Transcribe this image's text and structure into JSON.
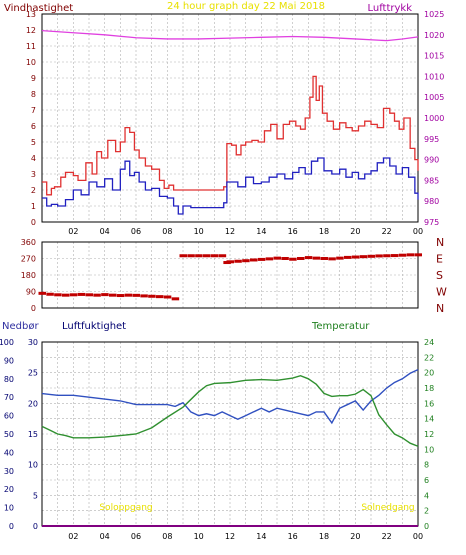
{
  "wind_panel": {
    "left_title": "Vindhastighet",
    "center_title": "24 hour graph day  22 Mai 2018",
    "right_title": "Lufttrykk",
    "x_ticks": [
      "02",
      "04",
      "06",
      "08",
      "10",
      "12",
      "14",
      "16",
      "18",
      "20",
      "22",
      "00"
    ],
    "left_ticks": [
      "0",
      "1",
      "2",
      "3",
      "4",
      "5",
      "6",
      "7",
      "8",
      "9",
      "10",
      "11",
      "12",
      "13"
    ],
    "right_ticks": [
      "975",
      "980",
      "985",
      "990",
      "995",
      "1000",
      "1005",
      "1010",
      "1015",
      "1020",
      "1025"
    ]
  },
  "direction_panel": {
    "left_ticks": [
      "0",
      "90",
      "180",
      "270",
      "360"
    ],
    "compass_labels": [
      "N",
      "W",
      "S",
      "E",
      "N"
    ]
  },
  "climate_panel": {
    "left_title": "Nedbør",
    "mid_title": "Luftfuktighet",
    "right_title": "Temperatur",
    "rain_ticks": [
      "0",
      "10",
      "20",
      "30",
      "40",
      "50",
      "60",
      "70",
      "80",
      "90",
      "100"
    ],
    "humidity_ticks": [
      "0",
      "5",
      "10",
      "15",
      "20",
      "25",
      "30"
    ],
    "temp_ticks": [
      "0",
      "2",
      "4",
      "6",
      "8",
      "10",
      "12",
      "14",
      "16",
      "18",
      "20",
      "22",
      "24"
    ],
    "x_ticks": [
      "02",
      "04",
      "06",
      "08",
      "10",
      "12",
      "14",
      "16",
      "18",
      "20",
      "22",
      "00"
    ],
    "sunrise_label": "Soloppgang",
    "sunset_label": "Solnedgang"
  },
  "colors": {
    "wind_gust": "#e03030",
    "wind_avg": "#2020c0",
    "pressure": "#e040e0",
    "wind_dir": "#c00000",
    "humidity": "#3050c0",
    "temperature": "#309030",
    "rain": "#800080",
    "title_dark": "#800000",
    "title_yellow": "#e8e000",
    "title_purple": "#a000a0"
  },
  "chart_data": [
    {
      "type": "line",
      "x_unit": "hours since 00:00",
      "xlim": [
        0,
        24
      ],
      "ylim": [
        0,
        13
      ],
      "y2lim": [
        975,
        1025
      ],
      "series": [
        {
          "name": "Vindhastighet",
          "axis": "left",
          "x": [
            0,
            0.3,
            0.6,
            0.8,
            1.2,
            1.5,
            2.0,
            2.3,
            2.8,
            3.2,
            3.5,
            3.8,
            4.2,
            4.7,
            5.0,
            5.3,
            5.6,
            5.9,
            6.2,
            6.6,
            7.0,
            7.5,
            7.8,
            8.1,
            8.4,
            8.7,
            9.2,
            9.6,
            10.0,
            10.5,
            11.0,
            11.6,
            11.8,
            12.1,
            12.4,
            12.7,
            13.0,
            13.4,
            13.8,
            14.2,
            14.6,
            15.0,
            15.4,
            15.8,
            16.2,
            16.5,
            16.8,
            17.1,
            17.3,
            17.5,
            17.7,
            17.9,
            18.2,
            18.6,
            19.0,
            19.4,
            19.8,
            20.2,
            20.6,
            21.0,
            21.4,
            21.8,
            22.2,
            22.5,
            22.8,
            23.1,
            23.5,
            23.8,
            24.0
          ],
          "values": [
            2.5,
            1.7,
            2.1,
            2.2,
            2.8,
            3.1,
            2.9,
            2.6,
            3.7,
            3.0,
            4.4,
            4.0,
            5.1,
            4.4,
            5.0,
            5.9,
            5.6,
            4.5,
            4.0,
            3.5,
            3.3,
            2.6,
            2.1,
            2.3,
            2.0,
            2.0,
            2.0,
            2.0,
            2.0,
            2.0,
            2.0,
            2.2,
            4.9,
            4.8,
            4.2,
            4.8,
            5.0,
            5.1,
            5.0,
            5.7,
            6.1,
            5.2,
            6.1,
            6.3,
            6.0,
            5.8,
            6.5,
            7.8,
            9.1,
            7.6,
            8.5,
            6.8,
            6.3,
            5.8,
            6.2,
            5.9,
            5.7,
            6.0,
            6.3,
            6.1,
            5.9,
            7.1,
            6.8,
            6.3,
            5.8,
            6.5,
            4.6,
            3.9,
            3.2
          ]
        },
        {
          "name": "Vindhastighet",
          "axis": "left",
          "x": [
            0,
            0.3,
            0.6,
            1.0,
            1.5,
            2.0,
            2.5,
            3.0,
            3.5,
            4.0,
            4.5,
            5.0,
            5.3,
            5.6,
            5.9,
            6.2,
            6.6,
            7.0,
            7.5,
            8.0,
            8.4,
            8.7,
            9.0,
            9.5,
            10.0,
            10.5,
            11.0,
            11.6,
            11.8,
            12.1,
            12.5,
            13.0,
            13.5,
            14.0,
            14.5,
            15.0,
            15.5,
            16.0,
            16.4,
            16.8,
            17.2,
            17.6,
            18.0,
            18.5,
            19.0,
            19.4,
            19.8,
            20.2,
            20.6,
            21.0,
            21.4,
            21.8,
            22.2,
            22.6,
            23.0,
            23.4,
            23.8,
            24.0
          ],
          "values": [
            1.5,
            1.0,
            1.1,
            1.0,
            1.4,
            2.0,
            1.7,
            2.5,
            2.2,
            2.7,
            2.0,
            3.3,
            3.8,
            2.9,
            3.1,
            2.5,
            2.0,
            2.1,
            1.6,
            1.5,
            1.0,
            0.5,
            1.0,
            0.9,
            0.9,
            0.9,
            0.9,
            1.2,
            2.5,
            2.5,
            2.2,
            2.8,
            2.4,
            2.5,
            2.8,
            3.0,
            2.7,
            3.1,
            3.4,
            3.0,
            3.8,
            4.0,
            3.2,
            3.0,
            3.3,
            2.8,
            3.1,
            2.7,
            3.0,
            3.2,
            3.7,
            4.0,
            3.5,
            3.0,
            3.4,
            2.8,
            1.8,
            1.4
          ]
        },
        {
          "name": "Lufttrykk",
          "axis": "right",
          "x": [
            0,
            2,
            4,
            6,
            8,
            10,
            12,
            14,
            16,
            18,
            20,
            22,
            23,
            24
          ],
          "values": [
            1021,
            1020.5,
            1020,
            1019.3,
            1019,
            1019,
            1019.2,
            1019.4,
            1019.6,
            1019.4,
            1019,
            1018.6,
            1019,
            1019.5
          ]
        }
      ]
    },
    {
      "type": "scatter",
      "x_unit": "hours since 00:00",
      "xlim": [
        0,
        24
      ],
      "ylim": [
        0,
        360
      ],
      "x": [
        0,
        0.5,
        1.0,
        1.5,
        2.0,
        2.5,
        3.0,
        3.5,
        4.0,
        4.5,
        5.0,
        5.5,
        6.0,
        6.5,
        7.0,
        7.5,
        8.0,
        8.5,
        9.0,
        9.5,
        10.0,
        10.5,
        11.0,
        11.5,
        11.8,
        12.0,
        12.5,
        13.0,
        13.5,
        14.0,
        14.5,
        15.0,
        15.5,
        16.0,
        16.5,
        17.0,
        17.5,
        18.0,
        18.5,
        19.0,
        19.5,
        20.0,
        20.5,
        21.0,
        21.5,
        22.0,
        22.5,
        23.0,
        23.5,
        24.0
      ],
      "values": [
        80,
        75,
        72,
        70,
        72,
        74,
        72,
        70,
        73,
        70,
        68,
        70,
        69,
        66,
        64,
        62,
        60,
        50,
        285,
        285,
        285,
        285,
        285,
        285,
        248,
        252,
        255,
        258,
        262,
        265,
        268,
        272,
        270,
        266,
        270,
        275,
        272,
        270,
        268,
        272,
        276,
        278,
        280,
        282,
        284,
        285,
        286,
        288,
        290,
        290
      ]
    },
    {
      "type": "line",
      "x_unit": "hours since 00:00",
      "xlim": [
        0,
        24
      ],
      "ylim": [
        0,
        100
      ],
      "y2lim": [
        0,
        24
      ],
      "series": [
        {
          "name": "Luftfuktighet",
          "axis": "left",
          "x": [
            0,
            1,
            2,
            3,
            4,
            5,
            6,
            7,
            8,
            8.5,
            9,
            9.5,
            10,
            10.5,
            11,
            11.5,
            12,
            12.5,
            13,
            13.5,
            14,
            14.5,
            15,
            15.5,
            16,
            16.5,
            17,
            17.5,
            18,
            18.5,
            19,
            19.5,
            20,
            20.5,
            21,
            21.5,
            22,
            22.5,
            23,
            23.5,
            24
          ],
          "values": [
            72,
            71,
            71,
            70,
            69,
            68,
            66,
            66,
            66,
            65,
            67,
            62,
            60,
            61,
            60,
            62,
            60,
            58,
            60,
            62,
            64,
            62,
            64,
            63,
            62,
            61,
            60,
            62,
            62,
            56,
            64,
            66,
            68,
            63,
            68,
            71,
            75,
            78,
            80,
            83,
            85
          ]
        },
        {
          "name": "Temperatur",
          "axis": "right",
          "x": [
            0,
            0.5,
            1,
            1.5,
            2,
            3,
            4,
            5,
            6,
            7,
            8,
            9,
            10,
            10.5,
            11,
            12,
            13,
            14,
            15,
            16,
            16.5,
            17,
            17.5,
            18,
            18.5,
            19,
            19.5,
            20,
            20.5,
            21,
            21.5,
            22,
            22.5,
            23,
            23.5,
            24
          ],
          "values": [
            13,
            12.5,
            12,
            11.8,
            11.5,
            11.5,
            11.6,
            11.8,
            12.0,
            12.8,
            14.2,
            15.5,
            17.5,
            18.3,
            18.6,
            18.7,
            19.0,
            19.1,
            19.0,
            19.3,
            19.6,
            19.2,
            18.5,
            17.3,
            16.9,
            17.0,
            17.0,
            17.2,
            17.8,
            17.0,
            14.5,
            13.2,
            12.0,
            11.5,
            10.8,
            10.4
          ]
        },
        {
          "name": "Nedbør",
          "axis": "left",
          "x": [
            0,
            24
          ],
          "values": [
            0,
            0
          ]
        }
      ]
    }
  ]
}
